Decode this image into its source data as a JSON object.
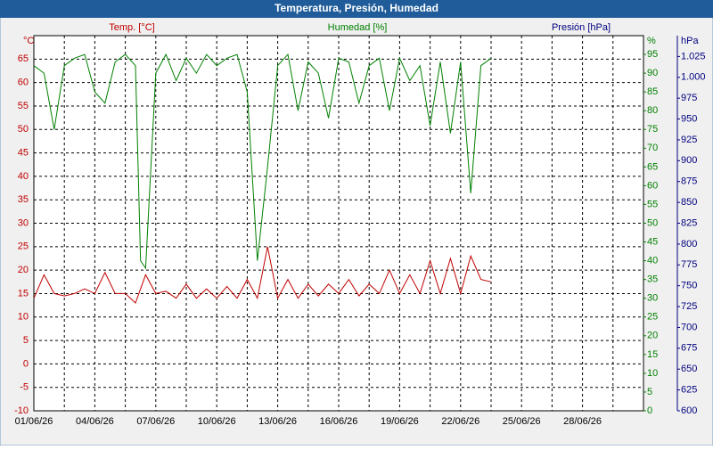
{
  "chart_data": {
    "type": "line",
    "title": "Temperatura, Presión, Humedad",
    "axis_titles": {
      "y": "Temp. [°C]",
      "y2": "Humedad [%]",
      "y3": "Presión [hPa]"
    },
    "axis_units": {
      "y": "°C",
      "y2": "%",
      "y3": "hPa"
    },
    "xlim": [
      0,
      30
    ],
    "xticks": [
      {
        "value": 0,
        "label": "01/06/26"
      },
      {
        "value": 3,
        "label": "04/06/26"
      },
      {
        "value": 6,
        "label": "07/06/26"
      },
      {
        "value": 9,
        "label": "10/06/26"
      },
      {
        "value": 12,
        "label": "13/06/26"
      },
      {
        "value": 15,
        "label": "16/06/26"
      },
      {
        "value": 18,
        "label": "19/06/26"
      },
      {
        "value": 21,
        "label": "22/06/26"
      },
      {
        "value": 24,
        "label": "25/06/26"
      },
      {
        "value": 27,
        "label": "28/06/26"
      }
    ],
    "xgrid": [
      1.5,
      4.5,
      7.5,
      10.5,
      13.5,
      16.5,
      19.5,
      22.5,
      25.5,
      28.5
    ],
    "ylim": [
      -10,
      70
    ],
    "yticks": [
      -10,
      -5,
      0,
      5,
      10,
      15,
      20,
      25,
      30,
      35,
      40,
      45,
      50,
      55,
      60,
      65
    ],
    "y2lim": [
      0,
      100
    ],
    "y2ticks": [
      0,
      5,
      10,
      15,
      20,
      25,
      30,
      35,
      40,
      45,
      50,
      55,
      60,
      65,
      70,
      75,
      80,
      85,
      90,
      95
    ],
    "y3lim": [
      600,
      1050
    ],
    "y3ticks": [
      600,
      625,
      650,
      675,
      700,
      725,
      750,
      775,
      800,
      825,
      850,
      875,
      900,
      925,
      950,
      975,
      {
        "value": 1000,
        "label": "1.000"
      },
      {
        "value": 1025,
        "label": "1.025"
      }
    ],
    "grid": true,
    "axis_colors": {
      "y": "#c00000",
      "y2": "#008000",
      "y3": "#000080"
    },
    "series": [
      {
        "name": "Temp. [°C]",
        "color": "#c00000",
        "axis": "y",
        "x": [
          0,
          0.5,
          1,
          1.5,
          2,
          2.5,
          3,
          3.5,
          4,
          4.5,
          5,
          5.5,
          6,
          6.5,
          7,
          7.5,
          8,
          8.5,
          9,
          9.5,
          10,
          10.5,
          11,
          11.5,
          12,
          12.5,
          13,
          13.5,
          14,
          14.5,
          15,
          15.5,
          16,
          16.5,
          17,
          17.5,
          18,
          18.5,
          19,
          19.5,
          20,
          20.5,
          21,
          21.5,
          22,
          22.5
        ],
        "values": [
          14,
          19,
          15,
          14.5,
          15,
          16,
          15,
          19.5,
          15,
          15,
          13,
          19,
          15,
          15.5,
          14,
          17,
          14,
          16,
          14,
          16.5,
          14,
          18,
          14,
          25,
          14,
          18,
          14,
          17,
          14.5,
          17,
          15,
          18,
          14.5,
          17,
          15,
          20,
          15,
          19,
          15,
          22,
          15,
          22.5,
          15,
          23,
          18,
          17.5
        ]
      },
      {
        "name": "Humedad [%]",
        "color": "#008000",
        "axis": "y2",
        "x": [
          0,
          0.5,
          1,
          1.5,
          2,
          2.5,
          3,
          3.5,
          4,
          4.5,
          5,
          5.25,
          5.5,
          6,
          6.5,
          7,
          7.5,
          8,
          8.5,
          9,
          9.5,
          10,
          10.5,
          11,
          11.5,
          12,
          12.5,
          13,
          13.5,
          14,
          14.5,
          15,
          15.5,
          16,
          16.5,
          17,
          17.5,
          18,
          18.5,
          19,
          19.5,
          20,
          20.5,
          21,
          21.5,
          22,
          22.5
        ],
        "values": [
          92,
          90,
          75,
          92,
          94,
          95,
          85,
          82,
          93,
          95,
          92,
          40,
          38,
          90,
          95,
          88,
          94,
          90,
          95,
          92,
          94,
          95,
          85,
          40,
          65,
          92,
          95,
          80,
          93,
          90,
          78,
          94,
          93,
          82,
          92,
          94,
          80,
          94,
          88,
          92,
          76,
          93,
          74,
          93,
          58,
          92,
          94
        ]
      }
    ]
  }
}
